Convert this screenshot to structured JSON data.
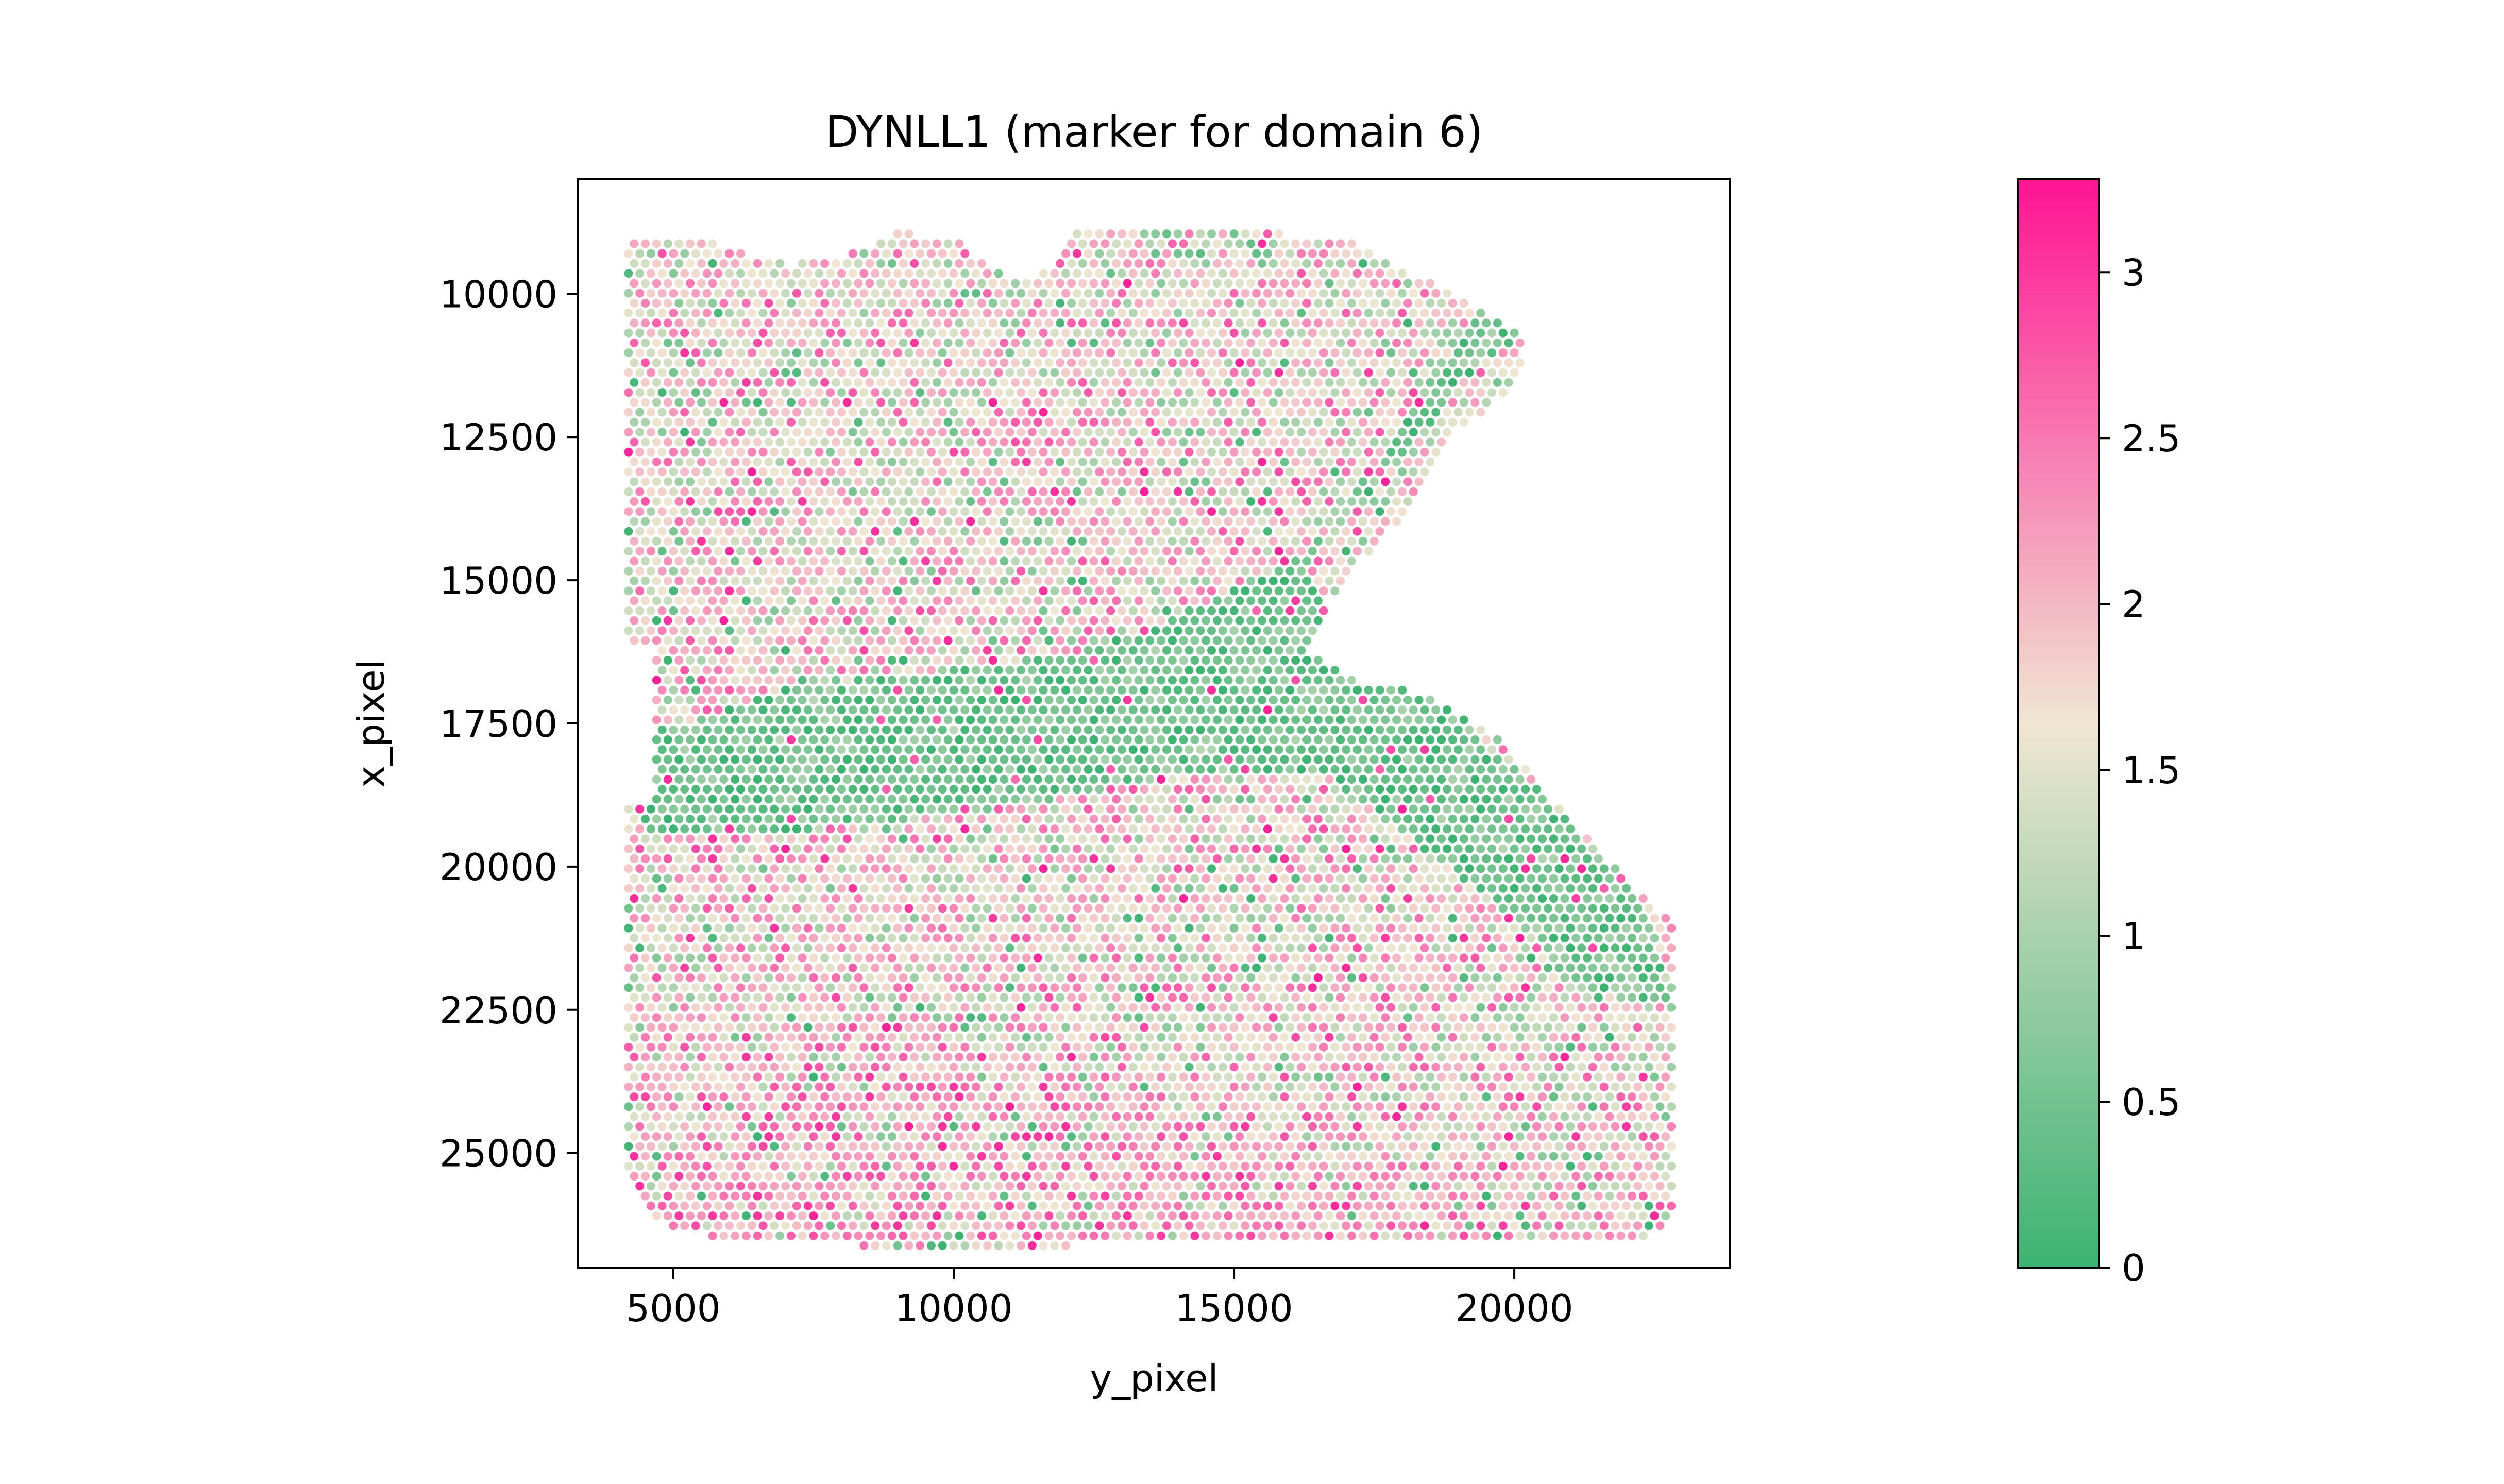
{
  "chart_data": {
    "type": "scatter",
    "title": "DYNLL1 (marker for domain 6)",
    "xlabel": "y_pixel",
    "ylabel": "x_pixel",
    "xlim": [
      3300,
      23850
    ],
    "ylim": [
      27000,
      8000
    ],
    "y_inverted": true,
    "xticks": [
      5000,
      10000,
      15000,
      20000
    ],
    "yticks": [
      10000,
      12500,
      15000,
      17500,
      20000,
      22500,
      25000
    ],
    "grid": false,
    "colorbar": {
      "min": 0,
      "max": 3.28,
      "ticks": [
        0,
        0.5,
        1,
        1.5,
        2,
        2.5,
        3
      ],
      "tick_labels": [
        "0",
        "0.5",
        "1",
        "1.5",
        "2",
        "2.5",
        "3"
      ],
      "colors": [
        "#3cb371",
        "#f0e6d2",
        "#ff1493"
      ]
    },
    "tissue": {
      "boundary": [
        [
          4200,
          9050
        ],
        [
          4900,
          8950
        ],
        [
          5500,
          9000
        ],
        [
          6300,
          9300
        ],
        [
          7100,
          9500
        ],
        [
          8000,
          9350
        ],
        [
          9000,
          8900
        ],
        [
          10000,
          9050
        ],
        [
          10800,
          9600
        ],
        [
          11500,
          9750
        ],
        [
          12100,
          8950
        ],
        [
          14500,
          8950
        ],
        [
          16000,
          8950
        ],
        [
          17000,
          9050
        ],
        [
          18200,
          9650
        ],
        [
          19400,
          10250
        ],
        [
          20200,
          10750
        ],
        [
          20150,
          11450
        ],
        [
          19000,
          12400
        ],
        [
          18300,
          13600
        ],
        [
          17400,
          14500
        ],
        [
          16700,
          15300
        ],
        [
          16300,
          16250
        ],
        [
          17300,
          16800
        ],
        [
          18300,
          16950
        ],
        [
          19800,
          17800
        ],
        [
          20900,
          19100
        ],
        [
          22200,
          20400
        ],
        [
          22800,
          21000
        ],
        [
          22850,
          26200
        ],
        [
          22200,
          26600
        ],
        [
          18600,
          26600
        ],
        [
          14700,
          26500
        ],
        [
          10200,
          26700
        ],
        [
          5800,
          26500
        ],
        [
          4600,
          26200
        ],
        [
          4200,
          25500
        ],
        [
          4200,
          9500
        ]
      ],
      "notch": [
        [
          4100,
          16200
        ],
        [
          4650,
          16200
        ],
        [
          4600,
          18900
        ],
        [
          4100,
          18900
        ]
      ],
      "low_expression_band": [
        [
          4500,
          17700
        ],
        [
          7000,
          16900
        ],
        [
          9500,
          16600
        ],
        [
          12000,
          16300
        ],
        [
          14000,
          15600
        ],
        [
          16000,
          14700
        ],
        [
          17800,
          13100
        ],
        [
          19300,
          11300
        ],
        [
          20200,
          10700
        ],
        [
          19400,
          10150
        ],
        [
          18300,
          11800
        ],
        [
          17200,
          13400
        ],
        [
          16300,
          14700
        ],
        [
          16600,
          15900
        ],
        [
          18300,
          16900
        ],
        [
          20500,
          18700
        ],
        [
          22300,
          20700
        ],
        [
          22850,
          22500
        ],
        [
          21300,
          22200
        ],
        [
          20000,
          20900
        ],
        [
          18500,
          19800
        ],
        [
          16500,
          18300
        ],
        [
          14000,
          18400
        ],
        [
          11500,
          18900
        ],
        [
          9000,
          19200
        ],
        [
          6000,
          19500
        ],
        [
          4500,
          19500
        ]
      ],
      "high_expression_band": [
        [
          4500,
          22800
        ],
        [
          9000,
          22800
        ],
        [
          14000,
          24200
        ],
        [
          18000,
          25200
        ],
        [
          22800,
          25400
        ],
        [
          22800,
          26600
        ],
        [
          4300,
          26600
        ]
      ],
      "spot_spacing": 200,
      "seed": 11
    }
  }
}
